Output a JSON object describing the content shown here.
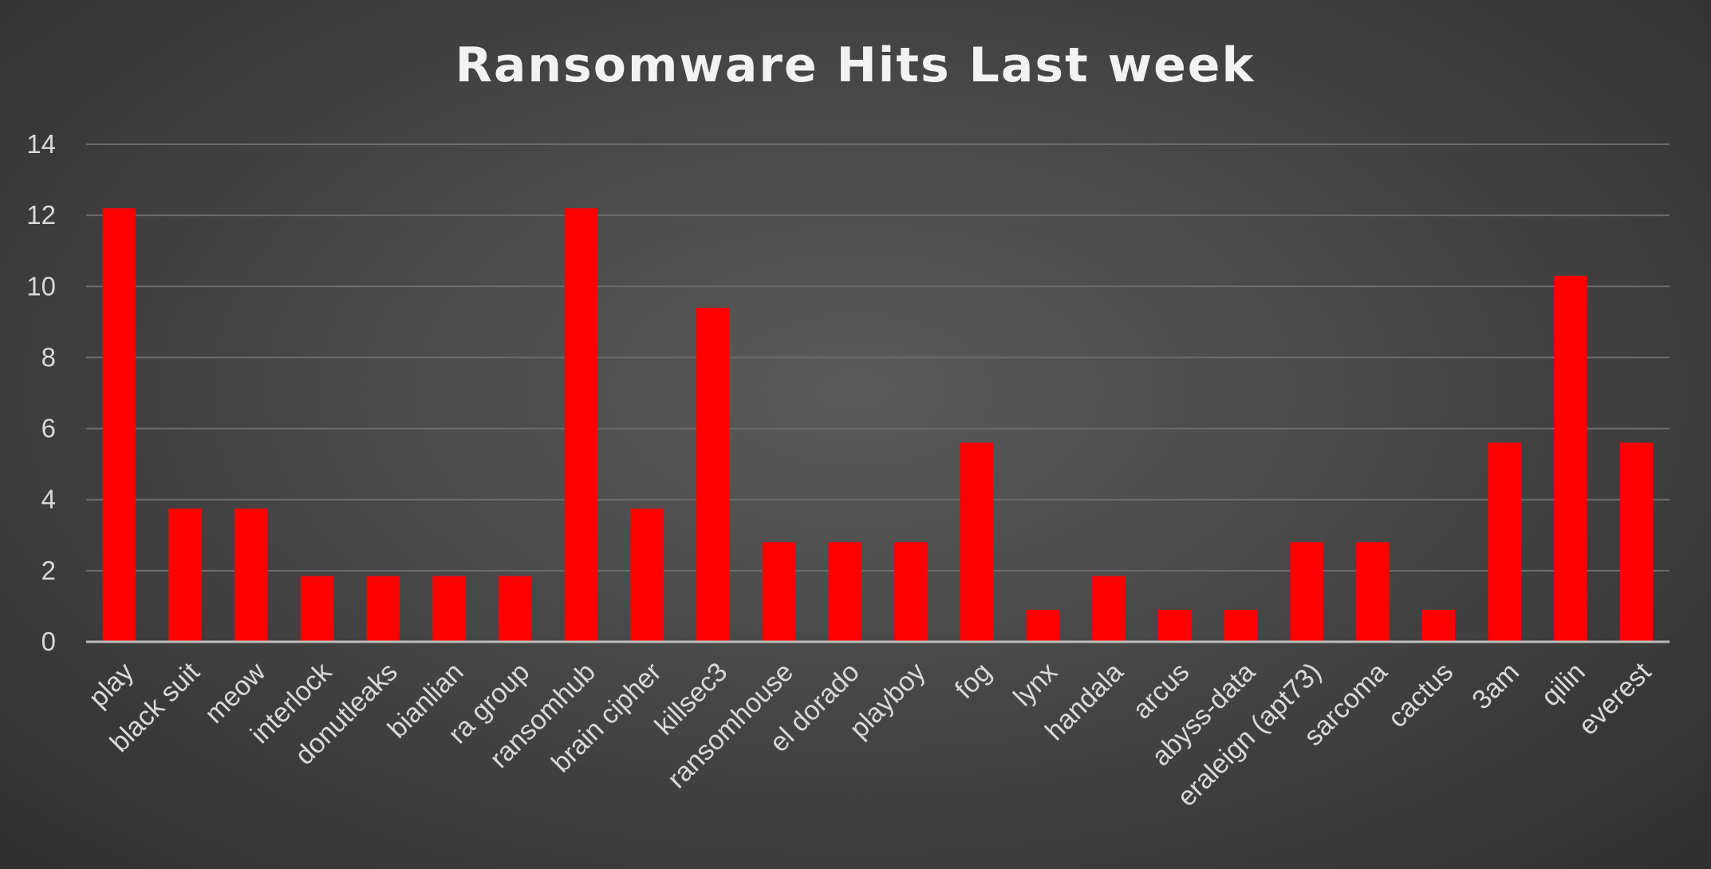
{
  "chart_data": {
    "type": "bar",
    "title": "Ransomware Hits Last week",
    "xlabel": "",
    "ylabel": "",
    "ylim": [
      0,
      14
    ],
    "yticks": [
      0,
      2,
      4,
      6,
      8,
      10,
      12,
      14
    ],
    "grid": true,
    "legend": "none",
    "bar_color": "#ff0000",
    "categories": [
      "play",
      "black suit",
      "meow",
      "interlock",
      "donutleaks",
      "bianlian",
      "ra group",
      "ransomhub",
      "brain cipher",
      "killsec3",
      "ransomhouse",
      "el dorado",
      "playboy",
      "fog",
      "lynx",
      "handala",
      "arcus",
      "abyss-data",
      "eraleign (apt73)",
      "sarcoma",
      "cactus",
      "3am",
      "qilin",
      "everest"
    ],
    "values": [
      12.2,
      3.75,
      3.75,
      1.85,
      1.85,
      1.85,
      1.85,
      12.2,
      3.75,
      9.4,
      2.8,
      2.8,
      2.8,
      5.6,
      0.9,
      1.85,
      0.9,
      0.9,
      2.8,
      2.8,
      0.9,
      5.6,
      10.3,
      5.6
    ]
  }
}
